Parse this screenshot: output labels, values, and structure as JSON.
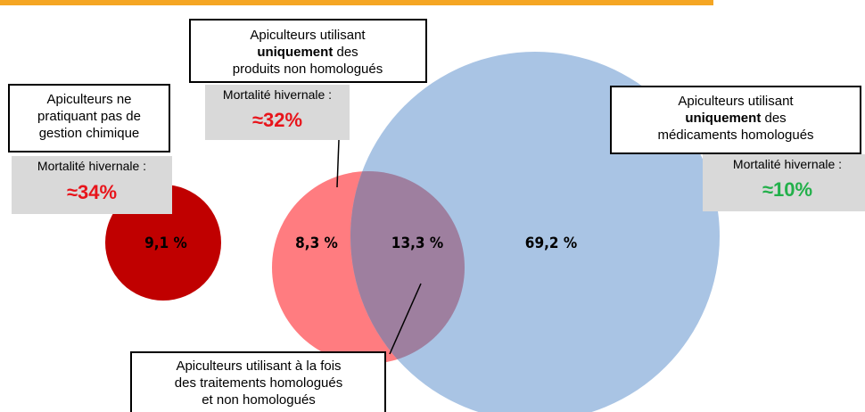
{
  "groups": [
    {
      "lines": [
        "Apiculteurs ne",
        "pratiquant pas de",
        "gestion chimique"
      ],
      "mortality_label": "Mortalité hivernale :",
      "mortality": "≈34%",
      "share": "9,1 %"
    },
    {
      "line1": "Apiculteurs utilisant",
      "emph": "uniquement",
      "rest": "des",
      "line3": "produits non homologués",
      "mortality_label": "Mortalité hivernale :",
      "mortality": "≈32%",
      "share": "8,3 %"
    },
    {
      "line1": "Apiculteurs utilisant",
      "emph": "uniquement",
      "rest": "des",
      "line3": "médicaments homologués",
      "mortality_label": "Mortalité hivernale :",
      "mortality": "≈10%",
      "share": "69,2 %"
    },
    {
      "lines": [
        "Apiculteurs utilisant à la fois",
        "des traitements homologués",
        "et non homologués"
      ],
      "share": "13,3 %"
    }
  ]
}
